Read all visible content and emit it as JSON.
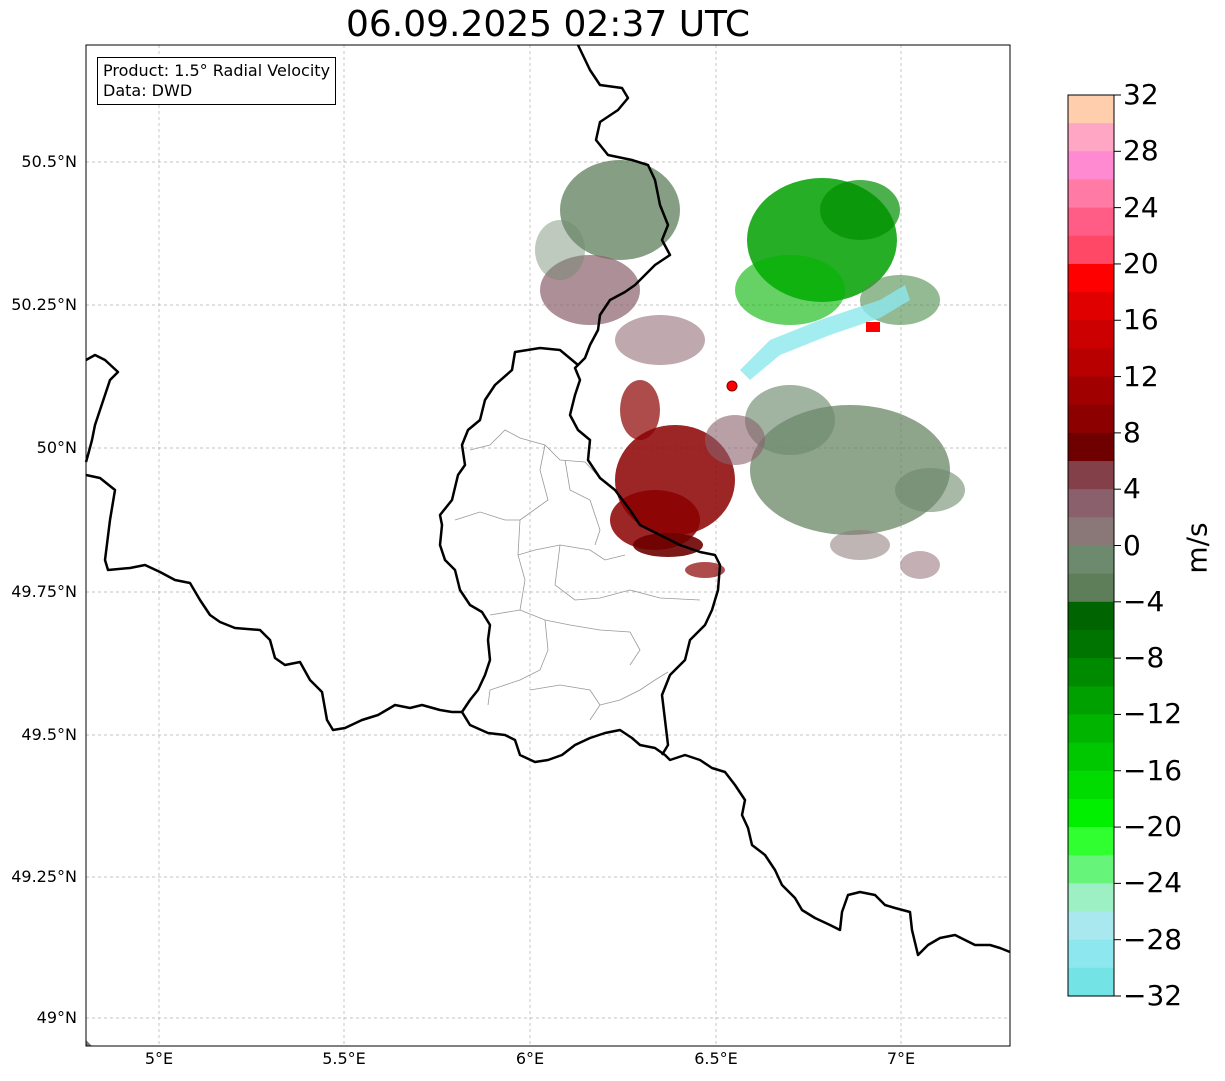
{
  "title": "06.09.2025 02:37 UTC",
  "info": {
    "product": "Product: 1.5° Radial Velocity",
    "source": "Data: DWD"
  },
  "axes": {
    "lat_labels": [
      "50.5°N",
      "50.25°N",
      "50°N",
      "49.75°N",
      "49.5°N",
      "49.25°N",
      "49°N"
    ],
    "lon_labels": [
      "5°E",
      "5.5°E",
      "6°E",
      "6.5°E",
      "7°E"
    ]
  },
  "colorbar": {
    "unit": "m/s",
    "ticks": [
      "32",
      "28",
      "24",
      "20",
      "16",
      "12",
      "8",
      "4",
      "0",
      "−4",
      "−8",
      "−12",
      "−16",
      "−20",
      "−24",
      "−28",
      "−32"
    ],
    "colors": [
      "#ffcfad",
      "#ffa6c4",
      "#ff8ad2",
      "#ff7aa5",
      "#ff5c86",
      "#ff4866",
      "#ff0000",
      "#e00000",
      "#cc0000",
      "#b80000",
      "#a10000",
      "#8c0000",
      "#6e0000",
      "#834048",
      "#8a606c",
      "#8a7878",
      "#6e8a6e",
      "#5e7e5a",
      "#006400",
      "#007400",
      "#008a00",
      "#00a000",
      "#00b400",
      "#00c800",
      "#00dc00",
      "#00f000",
      "#30ff30",
      "#66f57a",
      "#9cf0c4",
      "#a8e8ee",
      "#8ce8ee",
      "#73e3e6"
    ]
  },
  "radar_site": {
    "name": "radar-site",
    "color": "#ff0000"
  },
  "map_colors": {
    "border": "#000000",
    "district": "#999999",
    "grid": "#b0b0b0",
    "outbound": "#8b0000",
    "inbound": "#00a000",
    "weak": "#6e8a6e"
  }
}
